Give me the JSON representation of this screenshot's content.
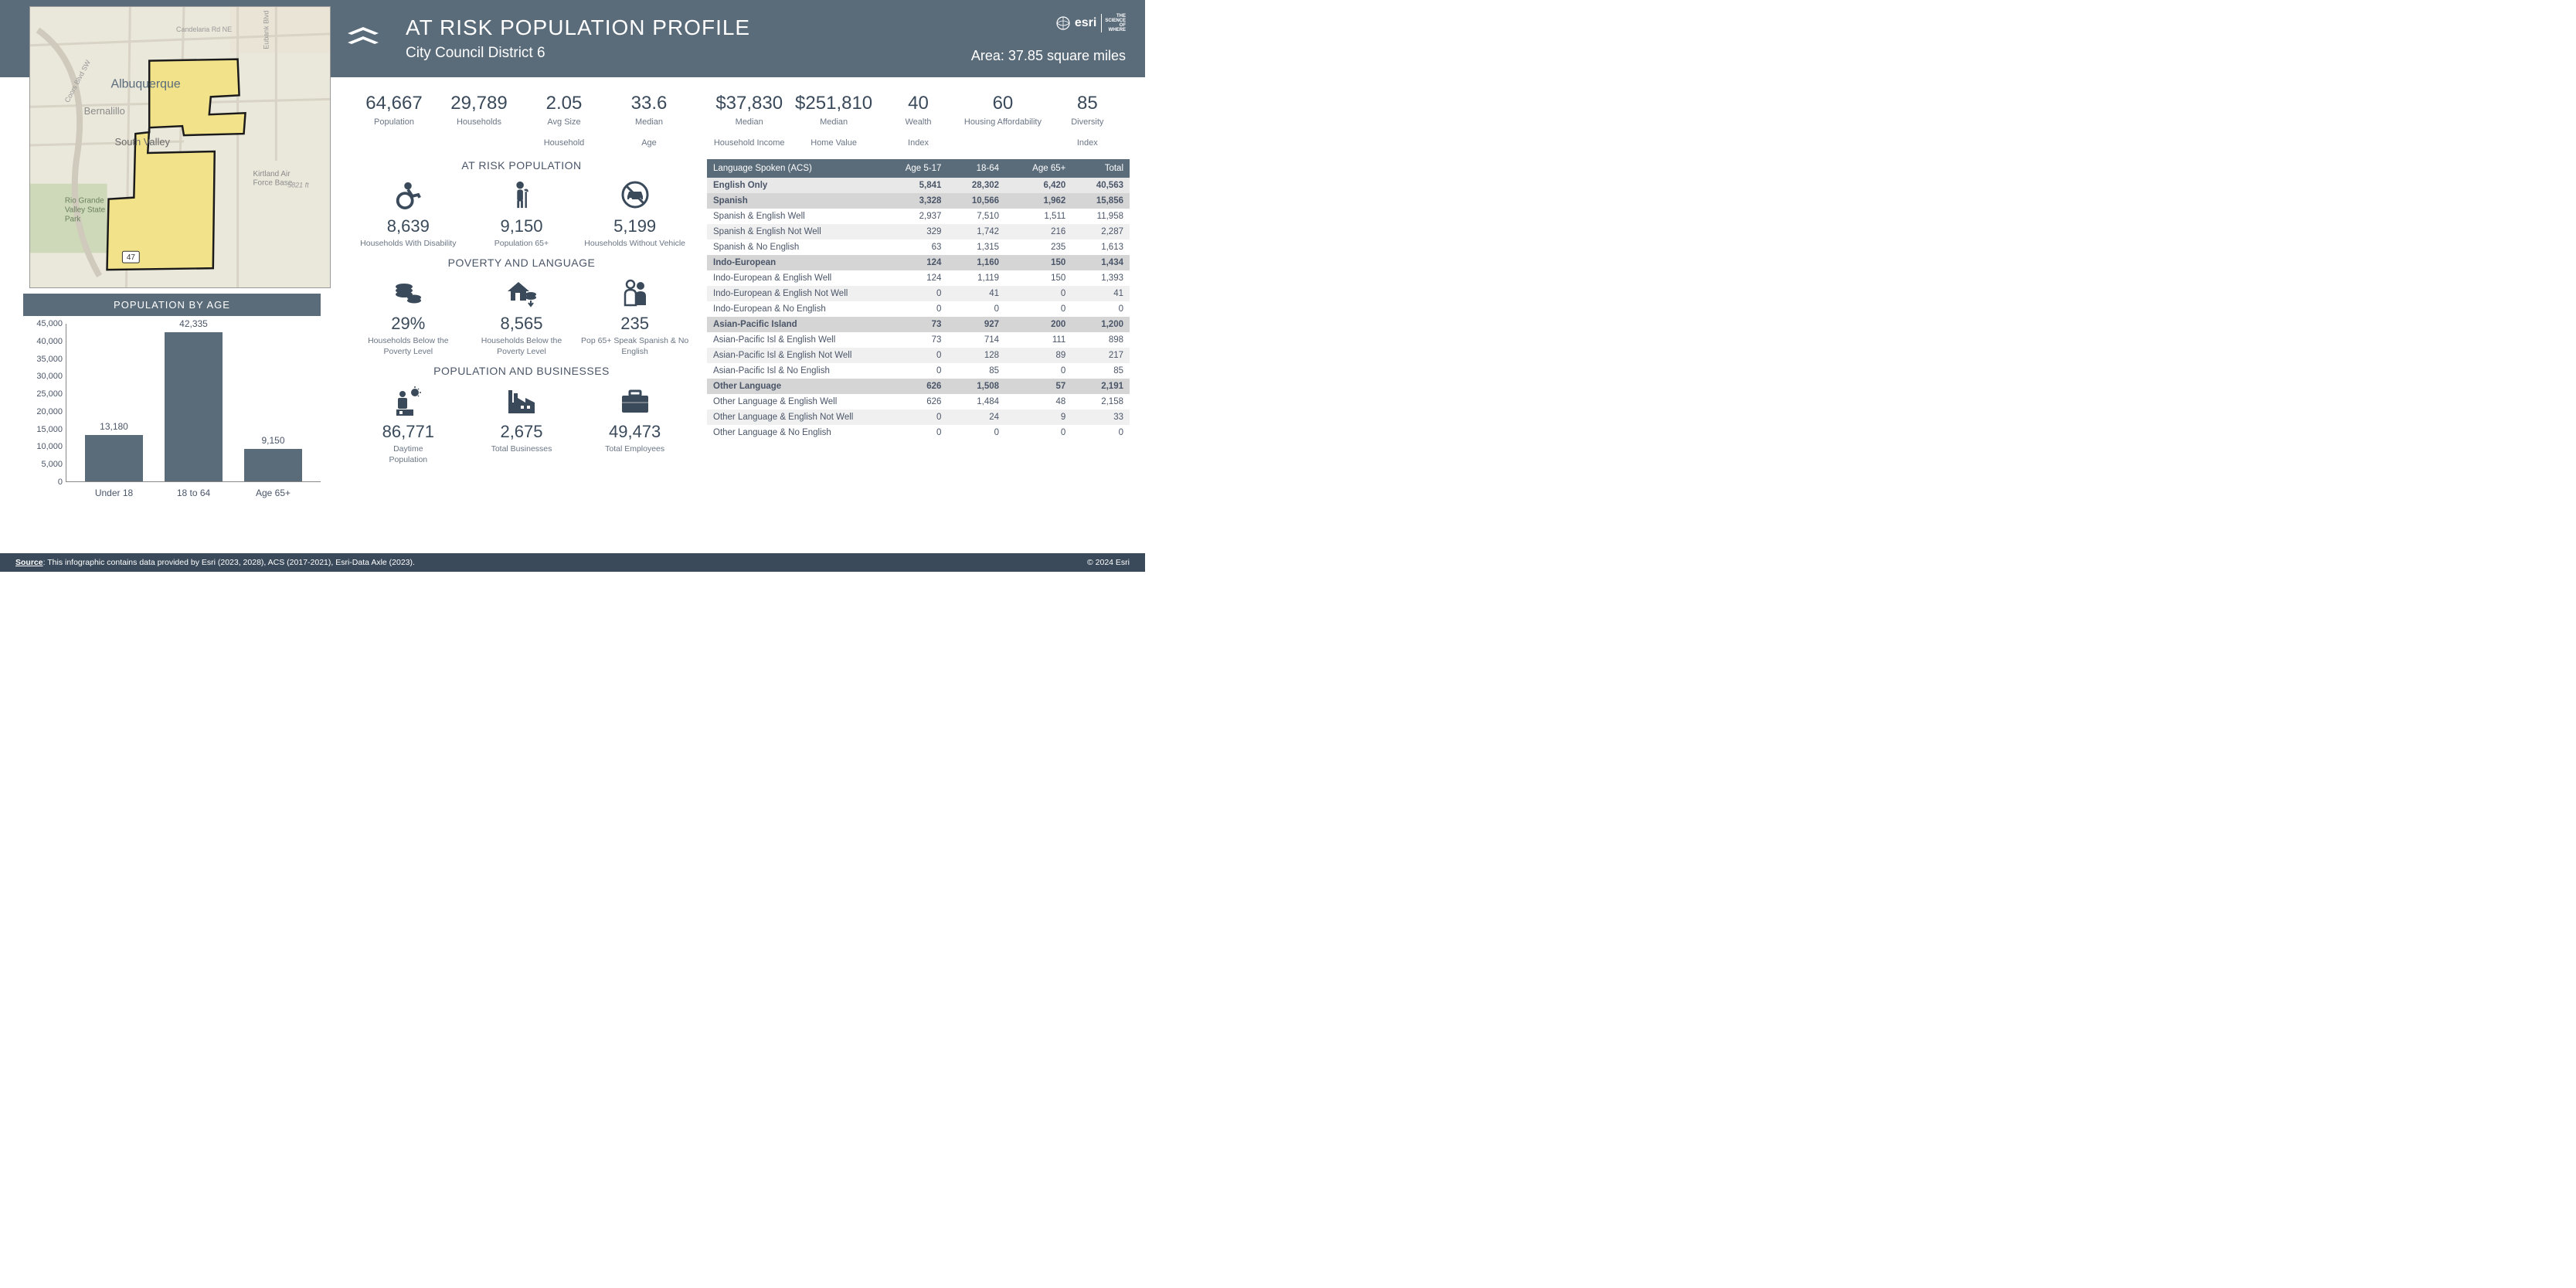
{
  "header": {
    "title": "AT RISK POPULATION PROFILE",
    "subtitle": "City Council District 6",
    "area": "Area: 37.85 square miles",
    "brand": "esri"
  },
  "map": {
    "labels": [
      "Albuquerque",
      "Bernalillo",
      "South Valley",
      "Rio Grande Valley State Park",
      "Kirtland Air Force Base",
      "Candelaria Rd NE",
      "Eubank Blvd",
      "Coors Blvd SW"
    ],
    "elevation": "5821 ft",
    "route": "47",
    "district_fill": "#f2e28a",
    "district_stroke": "#1a1a1a",
    "bg": "#eae7db",
    "road_color": "#d4cfc0",
    "green": "#cdd9b8"
  },
  "top_stats": [
    {
      "value": "64,667",
      "label": "Population",
      "label2": ""
    },
    {
      "value": "29,789",
      "label": "Households",
      "label2": ""
    },
    {
      "value": "2.05",
      "label": "Avg Size",
      "label2": "Household"
    },
    {
      "value": "33.6",
      "label": "Median",
      "label2": "Age"
    }
  ],
  "top_stats_r": [
    {
      "value": "$37,830",
      "label": "Median",
      "label2": "Household Income"
    },
    {
      "value": "$251,810",
      "label": "Median",
      "label2": "Home Value"
    },
    {
      "value": "40",
      "label": "Wealth",
      "label2": "Index"
    },
    {
      "value": "60",
      "label": "Housing Affordability",
      "label2": ""
    },
    {
      "value": "85",
      "label": "Diversity",
      "label2": "Index"
    }
  ],
  "pop_by_age": {
    "title": "POPULATION BY AGE",
    "categories": [
      "Under 18",
      "18 to 64",
      "Age 65+"
    ],
    "values": [
      13180,
      42335,
      9150
    ],
    "value_labels": [
      "13,180",
      "42,335",
      "9,150"
    ],
    "ymax": 45000,
    "ytick_step": 5000,
    "yticks": [
      "0",
      "5,000",
      "10,000",
      "15,000",
      "20,000",
      "25,000",
      "30,000",
      "35,000",
      "40,000",
      "45,000"
    ],
    "bar_color": "#5a6b7a"
  },
  "sections": {
    "at_risk": {
      "title": "AT RISK POPULATION",
      "items": [
        {
          "icon": "wheelchair",
          "value": "8,639",
          "label": "Households With Disability"
        },
        {
          "icon": "elder",
          "value": "9,150",
          "label": "Population 65+"
        },
        {
          "icon": "no-car",
          "value": "5,199",
          "label": "Households Without Vehicle"
        }
      ]
    },
    "poverty": {
      "title": "POVERTY AND LANGUAGE",
      "items": [
        {
          "icon": "coins",
          "value": "29%",
          "label": "Households Below the Poverty Level"
        },
        {
          "icon": "house-down",
          "value": "8,565",
          "label": "Households Below the Poverty Level"
        },
        {
          "icon": "people",
          "value": "235",
          "label": "Pop 65+ Speak Spanish & No English"
        }
      ]
    },
    "biz": {
      "title": "POPULATION AND BUSINESSES",
      "items": [
        {
          "icon": "daytime",
          "value": "86,771",
          "label": "Daytime",
          "label2": "Population"
        },
        {
          "icon": "factory",
          "value": "2,675",
          "label": "Total Businesses"
        },
        {
          "icon": "briefcase",
          "value": "49,473",
          "label": "Total Employees"
        }
      ]
    }
  },
  "lang_table": {
    "headers": [
      "Language Spoken (ACS)",
      "Age 5-17",
      "18-64",
      "Age 65+",
      "Total"
    ],
    "rows": [
      {
        "cls": "row-first",
        "cells": [
          "English Only",
          "5,841",
          "28,302",
          "6,420",
          "40,563"
        ]
      },
      {
        "cls": "row-group",
        "cells": [
          "Spanish",
          "3,328",
          "10,566",
          "1,962",
          "15,856"
        ]
      },
      {
        "cls": "row-even",
        "cells": [
          "Spanish & English Well",
          "2,937",
          "7,510",
          "1,511",
          "11,958"
        ]
      },
      {
        "cls": "row-odd",
        "cells": [
          "Spanish & English Not Well",
          "329",
          "1,742",
          "216",
          "2,287"
        ]
      },
      {
        "cls": "row-even",
        "cells": [
          "Spanish & No English",
          "63",
          "1,315",
          "235",
          "1,613"
        ]
      },
      {
        "cls": "row-group",
        "cells": [
          "Indo-European",
          "124",
          "1,160",
          "150",
          "1,434"
        ]
      },
      {
        "cls": "row-even",
        "cells": [
          "Indo-European & English Well",
          "124",
          "1,119",
          "150",
          "1,393"
        ]
      },
      {
        "cls": "row-odd",
        "cells": [
          "Indo-European & English Not Well",
          "0",
          "41",
          "0",
          "41"
        ]
      },
      {
        "cls": "row-even",
        "cells": [
          "Indo-European & No English",
          "0",
          "0",
          "0",
          "0"
        ]
      },
      {
        "cls": "row-group",
        "cells": [
          "Asian-Pacific Island",
          "73",
          "927",
          "200",
          "1,200"
        ]
      },
      {
        "cls": "row-even",
        "cells": [
          "Asian-Pacific Isl & English Well",
          "73",
          "714",
          "111",
          "898"
        ]
      },
      {
        "cls": "row-odd",
        "cells": [
          "Asian-Pacific Isl & English Not Well",
          "0",
          "128",
          "89",
          "217"
        ]
      },
      {
        "cls": "row-even",
        "cells": [
          "Asian-Pacific Isl & No English",
          "0",
          "85",
          "0",
          "85"
        ]
      },
      {
        "cls": "row-group",
        "cells": [
          "Other Language",
          "626",
          "1,508",
          "57",
          "2,191"
        ]
      },
      {
        "cls": "row-even",
        "cells": [
          "Other Language & English Well",
          "626",
          "1,484",
          "48",
          "2,158"
        ]
      },
      {
        "cls": "row-odd",
        "cells": [
          "Other Language & English Not Well",
          "0",
          "24",
          "9",
          "33"
        ]
      },
      {
        "cls": "row-even",
        "cells": [
          "Other Language & No English",
          "0",
          "0",
          "0",
          "0"
        ]
      }
    ]
  },
  "footer": {
    "source_label": "Source",
    "source_text": ": This infographic contains data provided by Esri (2023, 2028), ACS (2017-2021), Esri-Data Axle (2023).",
    "copyright": "© 2024 Esri"
  },
  "colors": {
    "header_bg": "#5a6b7a",
    "footer_bg": "#3a4a5a",
    "icon": "#3a4a5a",
    "text": "#4a5568"
  }
}
